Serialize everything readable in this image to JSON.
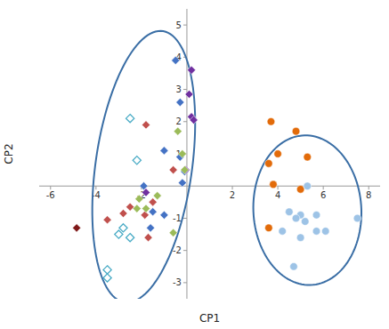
{
  "chart_data": {
    "type": "scatter",
    "xlabel": "CP1",
    "ylabel": "CP2",
    "xlim": [
      -6.5,
      8.5
    ],
    "ylim": [
      -3.5,
      5.5
    ],
    "xticks": [
      -6,
      -4,
      -2,
      2,
      4,
      6,
      8
    ],
    "yticks": [
      -3,
      -2,
      -1,
      1,
      2,
      3,
      4,
      5
    ],
    "grid": false,
    "series": [
      {
        "color": "#4472c4",
        "marker": "diamond",
        "x": [
          -0.5,
          -0.3,
          -1.0,
          -0.3,
          -0.1,
          -0.2,
          -1.9,
          -1.5,
          -1.6,
          -1.0
        ],
        "values": [
          3.9,
          2.6,
          1.1,
          0.9,
          0.45,
          0.1,
          0.0,
          -0.8,
          -1.3,
          -0.9
        ]
      },
      {
        "color": "#7030a0",
        "marker": "diamond",
        "x": [
          0.2,
          0.1,
          0.2,
          0.3,
          -0.05,
          -1.8
        ],
        "values": [
          3.6,
          2.85,
          2.15,
          2.05,
          0.5,
          -0.2
        ]
      },
      {
        "color": "#c0504d",
        "marker": "diamond",
        "x": [
          -1.8,
          -0.6,
          -1.5,
          -2.5,
          -1.85,
          -2.8,
          -1.7,
          -3.5
        ],
        "values": [
          1.9,
          0.5,
          -0.5,
          -0.65,
          -0.9,
          -0.85,
          -1.6,
          -1.05
        ]
      },
      {
        "color": "#9bbb59",
        "marker": "diamond",
        "x": [
          -0.4,
          -0.2,
          -0.1,
          -1.3,
          -2.1,
          -1.8,
          -0.6,
          -2.2
        ],
        "values": [
          1.7,
          1.0,
          0.5,
          -0.3,
          -0.4,
          -0.7,
          -1.45,
          -0.7
        ]
      },
      {
        "color": "#4bacc6",
        "marker": "open-diamond",
        "x": [
          -2.5,
          -2.2,
          -2.8,
          -3.0,
          -2.5,
          -3.5,
          -3.5
        ],
        "values": [
          2.1,
          0.8,
          -1.3,
          -1.5,
          -1.6,
          -2.6,
          -2.85
        ]
      },
      {
        "color": "#7f1919",
        "marker": "diamond",
        "x": [
          -4.85
        ],
        "values": [
          -1.3
        ]
      },
      {
        "color": "#e26b0a",
        "marker": "circle",
        "x": [
          3.7,
          4.8,
          4.0,
          5.3,
          3.6,
          3.8,
          5.0,
          3.6
        ],
        "values": [
          2.0,
          1.7,
          1.0,
          0.9,
          0.7,
          0.05,
          -0.1,
          -1.3
        ]
      },
      {
        "color": "#9dc3e6",
        "marker": "circle",
        "x": [
          5.3,
          4.5,
          5.0,
          5.7,
          4.8,
          5.2,
          4.2,
          5.7,
          6.1,
          5.0,
          4.7,
          7.5
        ],
        "values": [
          0.0,
          -0.8,
          -0.9,
          -0.9,
          -1.0,
          -1.1,
          -1.4,
          -1.4,
          -1.4,
          -1.6,
          -2.5,
          -1.0
        ]
      }
    ],
    "ellipses": [
      {
        "color": "#3a6ea5",
        "cx": -1.9,
        "cy": 0.6,
        "width": 4.2,
        "height": 8.6,
        "angle": -13
      },
      {
        "color": "#3a6ea5",
        "cx": 5.3,
        "cy": -0.75,
        "width": 4.8,
        "height": 4.6,
        "angle": -28
      }
    ]
  }
}
